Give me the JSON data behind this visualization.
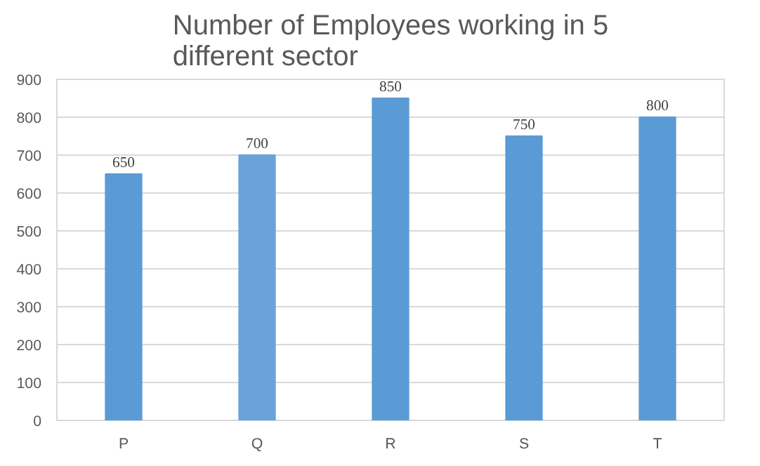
{
  "chart_data": {
    "type": "bar",
    "title": "Number of Employees working in 5 different sector",
    "categories": [
      "P",
      "Q",
      "R",
      "S",
      "T"
    ],
    "values": [
      650,
      700,
      850,
      750,
      800
    ],
    "colors": [
      "#5b9bd5",
      "#6aa3d9",
      "#5b9bd5",
      "#5b9bd5",
      "#5b9bd5"
    ],
    "ylim": [
      0,
      900
    ],
    "yticks": [
      0,
      100,
      200,
      300,
      400,
      500,
      600,
      700,
      800,
      900
    ],
    "grid": "y",
    "data_labels": true
  }
}
